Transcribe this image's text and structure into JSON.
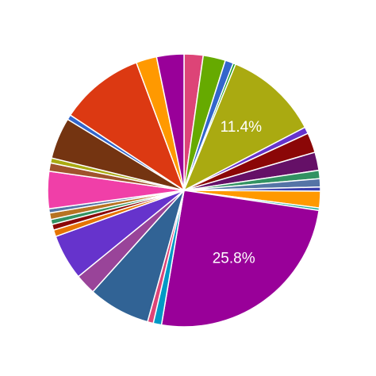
{
  "chart_data": {
    "type": "pie",
    "values": [
      2.3,
      2.7,
      1.0,
      0.3,
      11.4,
      0.8,
      2.4,
      2.2,
      1.0,
      1.0,
      0.5,
      2.0,
      0.3,
      25.8,
      1.0,
      0.7,
      7.5,
      2.5,
      5.5,
      0.8,
      0.7,
      0.6,
      0.8,
      0.5,
      4.5,
      1.0,
      0.6,
      5.0,
      0.6,
      10.2,
      2.5,
      3.3
    ],
    "value_labels": [
      null,
      null,
      null,
      null,
      "11.4%",
      null,
      null,
      null,
      null,
      null,
      null,
      null,
      null,
      "25.8%",
      null,
      null,
      null,
      null,
      null,
      null,
      null,
      null,
      null,
      null,
      null,
      null,
      null,
      null,
      null,
      null,
      null,
      null
    ],
    "colors": [
      "#dd4477",
      "#66aa00",
      "#3366cc",
      "#109618",
      "#aaaa11",
      "#6633cc",
      "#8b0707",
      "#651067",
      "#329262",
      "#5574a6",
      "#3b3eac",
      "#ff9900",
      "#22aa99",
      "#990099",
      "#0099c6",
      "#dd4477",
      "#316395",
      "#994499",
      "#6633cc",
      "#e67300",
      "#8b0707",
      "#329262",
      "#b77322",
      "#5574a6",
      "#f03fa8",
      "#a0522d",
      "#aaaa11",
      "#743411",
      "#3366cc",
      "#dc3912",
      "#ff9900",
      "#990099"
    ]
  }
}
